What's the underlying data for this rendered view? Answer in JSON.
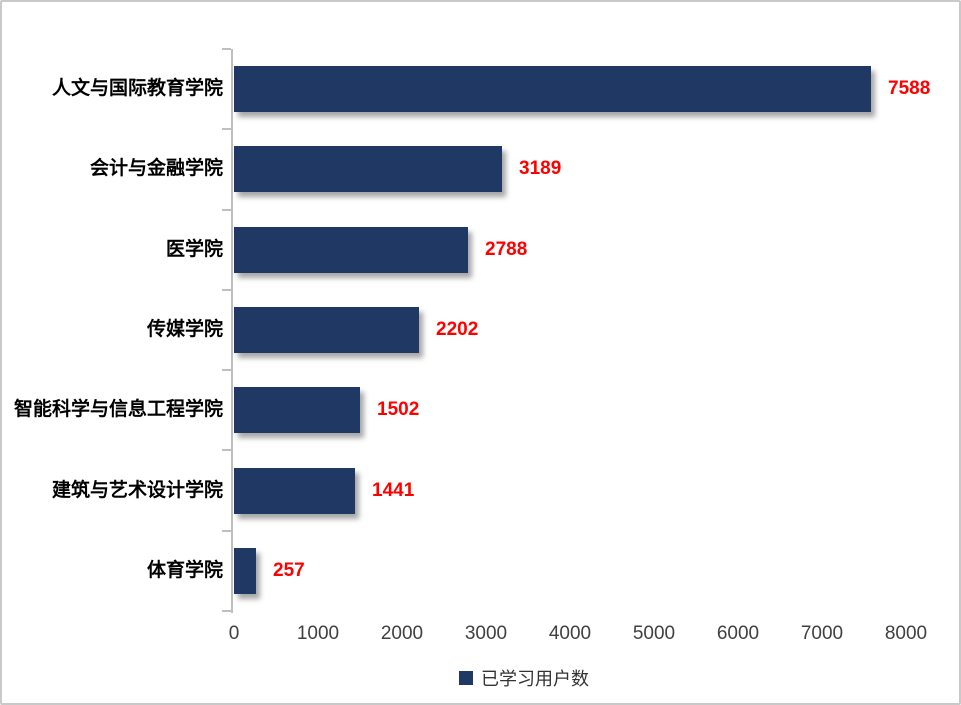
{
  "chart_data": {
    "type": "bar",
    "orientation": "horizontal",
    "title": "",
    "categories": [
      "人文与国际教育学院",
      "会计与金融学院",
      "医学院",
      "传媒学院",
      "智能科学与信息工程学院",
      "建筑与艺术设计学院",
      "体育学院"
    ],
    "values": [
      7588,
      3189,
      2788,
      2202,
      1502,
      1441,
      257
    ],
    "x_ticks": [
      "0",
      "1000",
      "2000",
      "3000",
      "4000",
      "5000",
      "6000",
      "7000",
      "8000"
    ],
    "xlim": [
      0,
      8000
    ],
    "grid": false,
    "legend_position": "bottom-center",
    "legend": [
      {
        "label": "已学习用户数",
        "color": "#1f3864"
      }
    ],
    "colors": {
      "bar": "#1f3864",
      "value_label": "#ff0000",
      "category_label": "#000000",
      "axis_line": "#bfbfbf",
      "tick_label": "#404040",
      "frame_border": "#c9c9c9",
      "background": "#ffffff"
    }
  }
}
